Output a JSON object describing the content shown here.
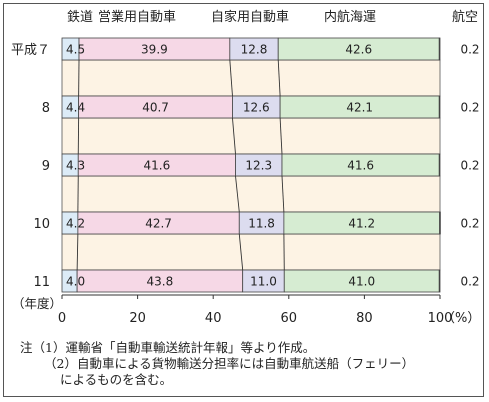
{
  "chart_data": {
    "type": "bar",
    "orientation": "horizontal",
    "stacked": true,
    "categories": [
      "平成７",
      "8",
      "9",
      "10",
      "11"
    ],
    "y_axis_caption": "（年度）",
    "series": [
      {
        "name": "鉄道",
        "values": [
          4.5,
          4.4,
          4.3,
          4.2,
          4.0
        ],
        "color": "#dcebf7"
      },
      {
        "name": "営業用自動車",
        "values": [
          39.9,
          40.7,
          41.6,
          42.7,
          43.8
        ],
        "color": "#f6d8e6"
      },
      {
        "name": "自家用自動車",
        "values": [
          12.8,
          12.6,
          12.3,
          11.8,
          11.0
        ],
        "color": "#dcdcef"
      },
      {
        "name": "内航海運",
        "values": [
          42.6,
          42.1,
          41.6,
          41.2,
          41.0
        ],
        "color": "#d6ecd2"
      },
      {
        "name": "航空",
        "values": [
          0.2,
          0.2,
          0.2,
          0.2,
          0.2
        ],
        "color": "#f4e6cf"
      }
    ],
    "xlim": [
      0,
      100
    ],
    "x_ticks": [
      "0",
      "20",
      "40",
      "60",
      "80",
      "100"
    ],
    "x_unit": "（%）",
    "band_color": "#fdf3e4",
    "grid": false,
    "legend": "top"
  },
  "notes": [
    "注（1）運輸省「自動車輸送統計年報」等より作成。",
    "（2）自動車による貨物輸送分担率には自動車航送船（フェリー）",
    "によるものを含む。"
  ]
}
